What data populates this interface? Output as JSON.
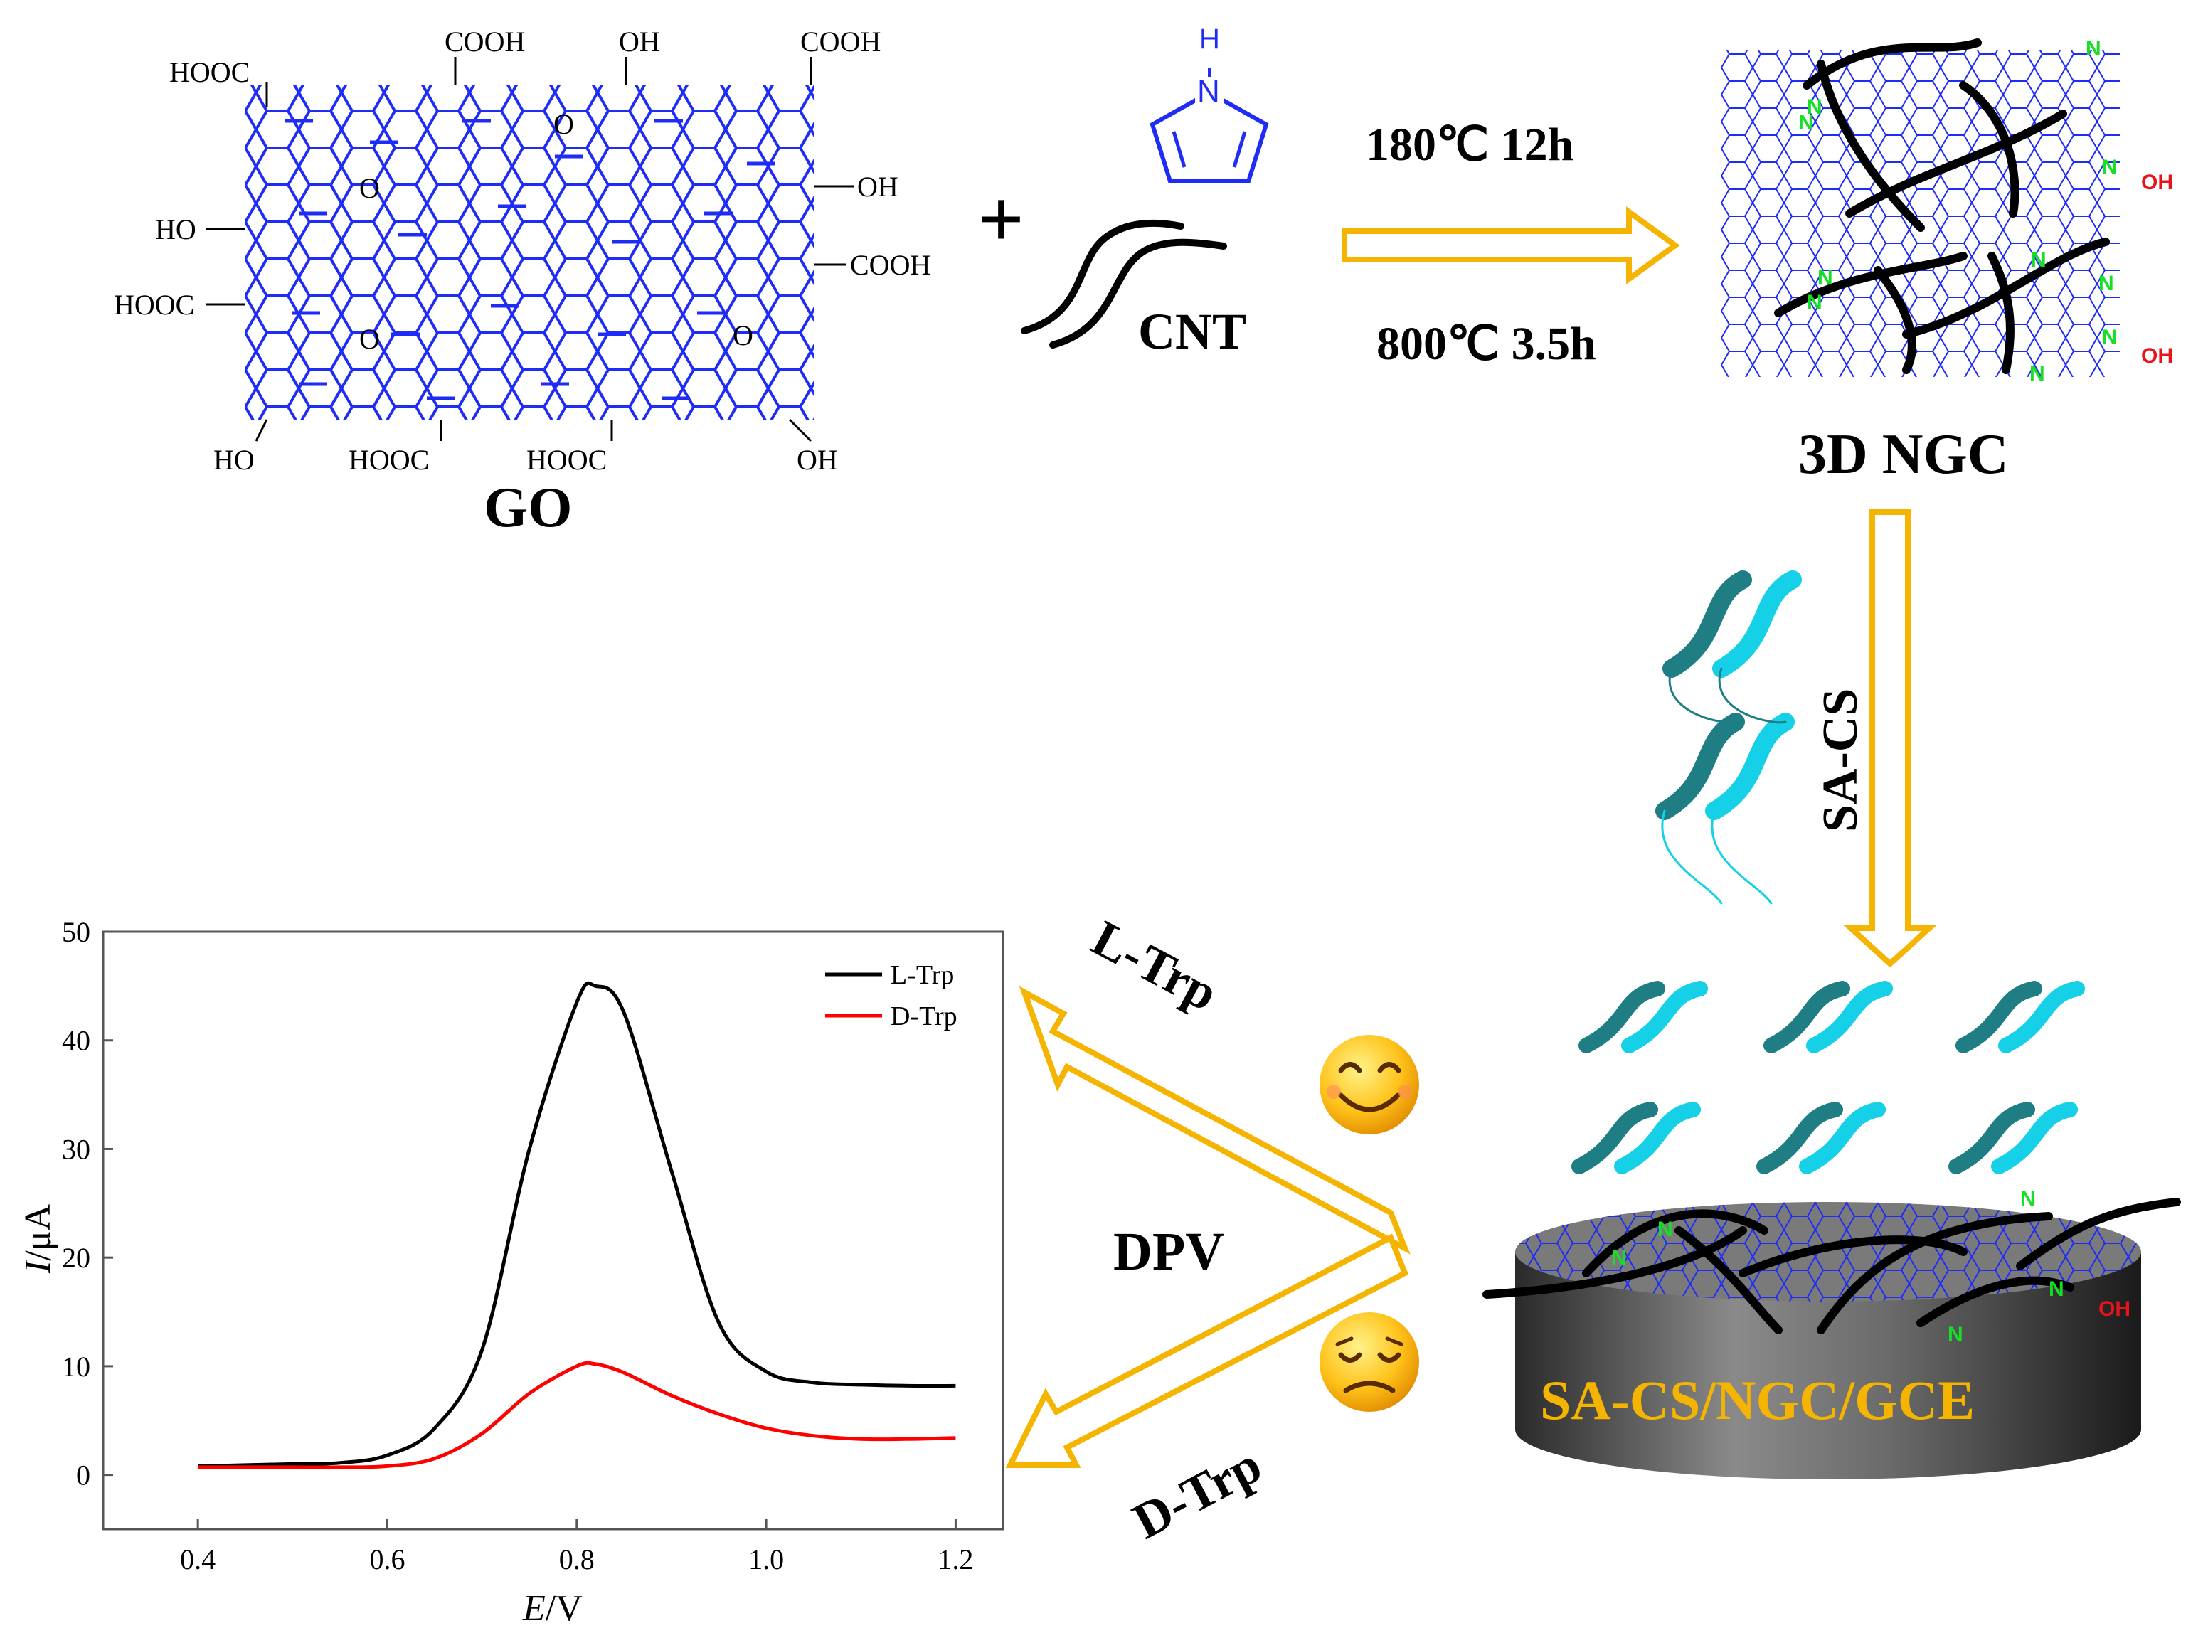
{
  "colors": {
    "lattice": "#1f2cf5",
    "arrow": "#f4b400",
    "nitrogen": "#16e024",
    "hydroxyl": "#e8131b",
    "electrode_label": "#f4b400",
    "helix_dark": "#1f7e84",
    "helix_light": "#15d0e6",
    "l_trp_curve": "#000000",
    "d_trp_curve": "#ff0000"
  },
  "go": {
    "label": "GO",
    "groups": [
      "HOOC",
      "COOH",
      "OH",
      "COOH",
      "O",
      "OH",
      "O",
      "HO",
      "COOH",
      "HOOC",
      "O",
      "O",
      "HO",
      "HOOC",
      "HOOC",
      "OH"
    ]
  },
  "reagents": {
    "plus": "+",
    "pyrrole_n": "N",
    "pyrrole_h": "H",
    "cnt_label": "CNT"
  },
  "synthesis": {
    "step1": "180℃  12h",
    "step2": "800℃  3.5h"
  },
  "ngc": {
    "label": "3D NGC",
    "n_label": "N",
    "oh_label": "OH"
  },
  "modification": {
    "label": "SA-CS"
  },
  "electrode": {
    "label": "SA-CS/NGC/GCE"
  },
  "detection": {
    "method": "DPV",
    "l_label": "L-Trp",
    "d_label": "D-Trp",
    "l_icon": "happy-face-icon",
    "d_icon": "sad-face-icon"
  },
  "chart_data": {
    "type": "line",
    "xlabel_italic": "E",
    "xlabel_unit": "/V",
    "ylabel_italic": "I",
    "ylabel_unit": "/μA",
    "xlim": [
      0.3,
      1.25
    ],
    "ylim": [
      -5,
      50
    ],
    "x_ticks": [
      "0.4",
      "0.6",
      "0.8",
      "1.0",
      "1.2"
    ],
    "y_ticks": [
      "0",
      "10",
      "20",
      "30",
      "40",
      "50"
    ],
    "legend_position": "top-right",
    "x": [
      0.4,
      0.45,
      0.5,
      0.55,
      0.6,
      0.65,
      0.7,
      0.75,
      0.8,
      0.82,
      0.85,
      0.9,
      0.95,
      1.0,
      1.05,
      1.1,
      1.15,
      1.2
    ],
    "series": [
      {
        "name": "L-Trp",
        "color": "#000000",
        "values": [
          0.8,
          0.9,
          1.0,
          1.1,
          1.8,
          4.3,
          11.5,
          30.0,
          43.5,
          45.0,
          42.5,
          28.0,
          14.0,
          9.5,
          8.5,
          8.3,
          8.2,
          8.2
        ]
      },
      {
        "name": "D-Trp",
        "color": "#ff0000",
        "values": [
          0.7,
          0.7,
          0.7,
          0.7,
          0.8,
          1.5,
          3.8,
          7.5,
          10.0,
          10.2,
          9.4,
          7.3,
          5.6,
          4.3,
          3.6,
          3.3,
          3.3,
          3.4
        ]
      }
    ]
  }
}
